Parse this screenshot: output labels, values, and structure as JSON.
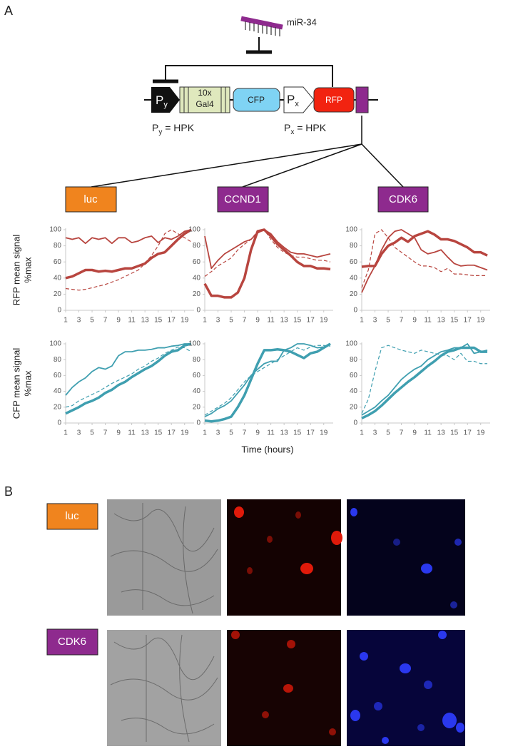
{
  "panel_a": {
    "label": "A",
    "mirna": "miR-34",
    "promoter_y": {
      "main": "P",
      "sub": "y"
    },
    "gal4": [
      "10x",
      "Gal4"
    ],
    "cfp": "CFP",
    "promoter_x": {
      "main": "P",
      "sub": "x"
    },
    "rfp": "RFP",
    "caption_y": {
      "main": "P",
      "sub": "y",
      "rest": " = HPK"
    },
    "caption_x": {
      "main": "P",
      "sub": "x",
      "rest": " = HPK"
    },
    "targets": [
      "luc",
      "CCND1",
      "CDK6"
    ]
  },
  "chart_data": [
    {
      "type": "line",
      "ylabel": [
        "RFP mean signal",
        "%max"
      ],
      "x": [
        1,
        2,
        3,
        4,
        5,
        6,
        7,
        8,
        9,
        10,
        11,
        12,
        13,
        14,
        15,
        16,
        17,
        18,
        19,
        20
      ],
      "xlim": [
        1,
        20
      ],
      "xticks": [
        1,
        3,
        5,
        7,
        9,
        11,
        13,
        15,
        17,
        19
      ],
      "ylim": [
        0,
        100
      ],
      "yticks": [
        0,
        20,
        40,
        60,
        80,
        100
      ],
      "series": [
        {
          "color": "#b8453f",
          "style": "thick",
          "values": [
            40,
            42,
            46,
            50,
            50,
            48,
            49,
            48,
            50,
            52,
            52,
            55,
            58,
            65,
            70,
            72,
            80,
            88,
            95,
            100
          ]
        },
        {
          "color": "#b8453f",
          "style": "thin",
          "values": [
            90,
            88,
            90,
            83,
            90,
            88,
            90,
            83,
            90,
            90,
            84,
            86,
            90,
            92,
            84,
            90,
            88,
            92,
            98,
            100
          ]
        },
        {
          "color": "#b8453f",
          "style": "dashed",
          "values": [
            27,
            26,
            25,
            26,
            28,
            30,
            32,
            35,
            38,
            42,
            46,
            50,
            58,
            68,
            80,
            95,
            100,
            95,
            90,
            85
          ]
        }
      ]
    },
    {
      "type": "line",
      "x": [
        1,
        2,
        3,
        4,
        5,
        6,
        7,
        8,
        9,
        10,
        11,
        12,
        13,
        14,
        15,
        16,
        17,
        18,
        19,
        20
      ],
      "xlim": [
        1,
        20
      ],
      "xticks": [
        1,
        3,
        5,
        7,
        9,
        11,
        13,
        15,
        17,
        19
      ],
      "ylim": [
        0,
        100
      ],
      "yticks": [
        0,
        20,
        40,
        60,
        80,
        100
      ],
      "series": [
        {
          "color": "#b8453f",
          "style": "thick",
          "values": [
            33,
            18,
            18,
            16,
            16,
            22,
            40,
            75,
            98,
            100,
            92,
            82,
            75,
            68,
            60,
            55,
            55,
            52,
            52,
            51
          ]
        },
        {
          "color": "#b8453f",
          "style": "thin",
          "values": [
            92,
            52,
            62,
            70,
            75,
            80,
            85,
            88,
            96,
            100,
            95,
            85,
            78,
            72,
            70,
            70,
            68,
            66,
            68,
            70
          ]
        },
        {
          "color": "#b8453f",
          "style": "dashed",
          "values": [
            42,
            48,
            55,
            60,
            65,
            75,
            82,
            88,
            98,
            100,
            88,
            78,
            72,
            68,
            66,
            66,
            64,
            62,
            62,
            60
          ]
        }
      ]
    },
    {
      "type": "line",
      "x": [
        1,
        2,
        3,
        4,
        5,
        6,
        7,
        8,
        9,
        10,
        11,
        12,
        13,
        14,
        15,
        16,
        17,
        18,
        19,
        20
      ],
      "xlim": [
        1,
        20
      ],
      "xticks": [
        1,
        3,
        5,
        7,
        9,
        11,
        13,
        15,
        17,
        19
      ],
      "ylim": [
        0,
        100
      ],
      "yticks": [
        0,
        20,
        40,
        60,
        80,
        100
      ],
      "series": [
        {
          "color": "#b8453f",
          "style": "thick",
          "values": [
            54,
            55,
            55,
            70,
            80,
            84,
            90,
            85,
            92,
            95,
            98,
            94,
            88,
            88,
            86,
            82,
            78,
            72,
            72,
            68
          ]
        },
        {
          "color": "#b8453f",
          "style": "thin",
          "values": [
            22,
            40,
            55,
            75,
            90,
            98,
            100,
            95,
            90,
            75,
            70,
            72,
            75,
            66,
            58,
            55,
            56,
            56,
            53,
            50
          ]
        },
        {
          "color": "#b8453f",
          "style": "dashed",
          "values": [
            28,
            50,
            95,
            100,
            90,
            78,
            72,
            66,
            60,
            55,
            55,
            53,
            48,
            52,
            45,
            45,
            44,
            43,
            43,
            43
          ]
        }
      ]
    },
    {
      "type": "line",
      "ylabel": [
        "CFP mean signal",
        "%max"
      ],
      "x": [
        1,
        2,
        3,
        4,
        5,
        6,
        7,
        8,
        9,
        10,
        11,
        12,
        13,
        14,
        15,
        16,
        17,
        18,
        19,
        20
      ],
      "xlim": [
        1,
        20
      ],
      "xticks": [
        1,
        3,
        5,
        7,
        9,
        11,
        13,
        15,
        17,
        19
      ],
      "ylim": [
        0,
        100
      ],
      "yticks": [
        0,
        20,
        40,
        60,
        80,
        100
      ],
      "series": [
        {
          "color": "#3f9fb0",
          "style": "thick",
          "values": [
            12,
            16,
            20,
            25,
            28,
            32,
            38,
            42,
            48,
            52,
            58,
            63,
            68,
            72,
            78,
            85,
            90,
            92,
            98,
            100
          ]
        },
        {
          "color": "#3f9fb0",
          "style": "thin",
          "values": [
            35,
            45,
            52,
            57,
            65,
            70,
            68,
            72,
            85,
            90,
            90,
            92,
            92,
            93,
            95,
            95,
            97,
            98,
            100,
            100
          ]
        },
        {
          "color": "#3f9fb0",
          "style": "dashed",
          "values": [
            20,
            22,
            28,
            32,
            36,
            40,
            45,
            50,
            54,
            58,
            62,
            68,
            72,
            78,
            82,
            88,
            92,
            96,
            95,
            90
          ]
        }
      ]
    },
    {
      "type": "line",
      "xlabel": "Time (hours)",
      "x": [
        1,
        2,
        3,
        4,
        5,
        6,
        7,
        8,
        9,
        10,
        11,
        12,
        13,
        14,
        15,
        16,
        17,
        18,
        19,
        20
      ],
      "xlim": [
        1,
        20
      ],
      "xticks": [
        1,
        3,
        5,
        7,
        9,
        11,
        13,
        15,
        17,
        19
      ],
      "ylim": [
        0,
        100
      ],
      "yticks": [
        0,
        20,
        40,
        60,
        80,
        100
      ],
      "series": [
        {
          "color": "#3f9fb0",
          "style": "thick",
          "values": [
            3,
            2,
            3,
            5,
            8,
            20,
            35,
            55,
            75,
            92,
            92,
            93,
            92,
            90,
            86,
            82,
            88,
            90,
            95,
            100
          ]
        },
        {
          "color": "#3f9fb0",
          "style": "thin",
          "values": [
            8,
            12,
            18,
            22,
            28,
            38,
            48,
            60,
            68,
            75,
            78,
            78,
            92,
            95,
            100,
            100,
            98,
            95,
            96,
            100
          ]
        },
        {
          "color": "#3f9fb0",
          "style": "dashed",
          "values": [
            10,
            15,
            20,
            25,
            32,
            42,
            52,
            60,
            65,
            70,
            75,
            80,
            85,
            90,
            95,
            92,
            96,
            98,
            98,
            97
          ]
        }
      ]
    },
    {
      "type": "line",
      "x": [
        1,
        2,
        3,
        4,
        5,
        6,
        7,
        8,
        9,
        10,
        11,
        12,
        13,
        14,
        15,
        16,
        17,
        18,
        19,
        20
      ],
      "xlim": [
        1,
        20
      ],
      "xticks": [
        1,
        3,
        5,
        7,
        9,
        11,
        13,
        15,
        17,
        19
      ],
      "ylim": [
        0,
        100
      ],
      "yticks": [
        0,
        20,
        40,
        60,
        80,
        100
      ],
      "series": [
        {
          "color": "#3f9fb0",
          "style": "thick",
          "values": [
            6,
            10,
            15,
            22,
            30,
            38,
            45,
            52,
            58,
            65,
            72,
            78,
            85,
            90,
            92,
            95,
            95,
            95,
            90,
            90
          ]
        },
        {
          "color": "#3f9fb0",
          "style": "thin",
          "values": [
            10,
            15,
            20,
            28,
            35,
            45,
            55,
            62,
            68,
            72,
            80,
            85,
            90,
            92,
            95,
            95,
            100,
            88,
            90,
            92
          ]
        },
        {
          "color": "#3f9fb0",
          "style": "dashed",
          "values": [
            12,
            30,
            65,
            95,
            98,
            95,
            92,
            90,
            88,
            92,
            90,
            88,
            86,
            85,
            80,
            88,
            78,
            78,
            75,
            75
          ]
        }
      ]
    }
  ],
  "panel_b": {
    "label": "B",
    "rows": [
      "luc",
      "CDK6"
    ]
  }
}
